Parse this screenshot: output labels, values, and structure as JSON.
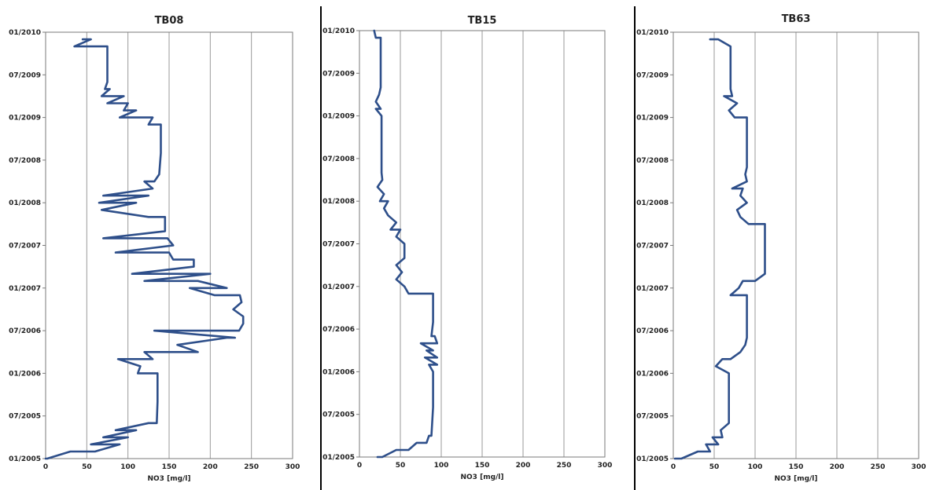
{
  "chart_data": [
    {
      "type": "line",
      "title": "TB08",
      "xlabel": "NO3 [mg/l]",
      "ylabel": "",
      "xlim": [
        0,
        300
      ],
      "x_ticks": [
        "0",
        "50",
        "100",
        "150",
        "200",
        "250",
        "300"
      ],
      "ylim": [
        "2005-01",
        "2010-01"
      ],
      "y_ticks": [
        "01/2005",
        "07/2005",
        "01/2006",
        "07/2006",
        "01/2007",
        "07/2007",
        "01/2008",
        "07/2008",
        "01/2009",
        "07/2009",
        "01/2010"
      ],
      "grid": "vertical",
      "line_color": "#2e4f8a",
      "series": [
        {
          "points": [
            {
              "date": "2005-01",
              "no3": 0
            },
            {
              "date": "2005-01",
              "no3": 2
            },
            {
              "date": "2005-02",
              "no3": 30
            },
            {
              "date": "2005-02",
              "no3": 60
            },
            {
              "date": "2005-03",
              "no3": 90
            },
            {
              "date": "2005-03",
              "no3": 55
            },
            {
              "date": "2005-04",
              "no3": 100
            },
            {
              "date": "2005-04",
              "no3": 70
            },
            {
              "date": "2005-05",
              "no3": 110
            },
            {
              "date": "2005-05",
              "no3": 85
            },
            {
              "date": "2005-06",
              "no3": 125
            },
            {
              "date": "2005-06",
              "no3": 135
            },
            {
              "date": "2005-09",
              "no3": 136
            },
            {
              "date": "2006-01",
              "no3": 136
            },
            {
              "date": "2006-01",
              "no3": 112
            },
            {
              "date": "2006-02",
              "no3": 115
            },
            {
              "date": "2006-03",
              "no3": 88
            },
            {
              "date": "2006-03",
              "no3": 130
            },
            {
              "date": "2006-04",
              "no3": 120
            },
            {
              "date": "2006-04",
              "no3": 185
            },
            {
              "date": "2006-05",
              "no3": 160
            },
            {
              "date": "2006-06",
              "no3": 220
            },
            {
              "date": "2006-06",
              "no3": 230
            },
            {
              "date": "2006-07",
              "no3": 132
            },
            {
              "date": "2006-07",
              "no3": 235
            },
            {
              "date": "2006-08",
              "no3": 240
            },
            {
              "date": "2006-09",
              "no3": 240
            },
            {
              "date": "2006-10",
              "no3": 228
            },
            {
              "date": "2006-11",
              "no3": 238
            },
            {
              "date": "2006-12",
              "no3": 236
            },
            {
              "date": "2006-12",
              "no3": 205
            },
            {
              "date": "2007-01",
              "no3": 175
            },
            {
              "date": "2007-01",
              "no3": 220
            },
            {
              "date": "2007-02",
              "no3": 185
            },
            {
              "date": "2007-02",
              "no3": 120
            },
            {
              "date": "2007-03",
              "no3": 200
            },
            {
              "date": "2007-03",
              "no3": 105
            },
            {
              "date": "2007-04",
              "no3": 180
            },
            {
              "date": "2007-05",
              "no3": 180
            },
            {
              "date": "2007-05",
              "no3": 155
            },
            {
              "date": "2007-06",
              "no3": 150
            },
            {
              "date": "2007-06",
              "no3": 85
            },
            {
              "date": "2007-07",
              "no3": 155
            },
            {
              "date": "2007-08",
              "no3": 148
            },
            {
              "date": "2007-08",
              "no3": 70
            },
            {
              "date": "2007-09",
              "no3": 145
            },
            {
              "date": "2007-11",
              "no3": 145
            },
            {
              "date": "2007-11",
              "no3": 125
            },
            {
              "date": "2007-12",
              "no3": 68
            },
            {
              "date": "2008-01",
              "no3": 110
            },
            {
              "date": "2008-01",
              "no3": 65
            },
            {
              "date": "2008-02",
              "no3": 125
            },
            {
              "date": "2008-02",
              "no3": 70
            },
            {
              "date": "2008-03",
              "no3": 130
            },
            {
              "date": "2008-04",
              "no3": 120
            },
            {
              "date": "2008-04",
              "no3": 132
            },
            {
              "date": "2008-05",
              "no3": 138
            },
            {
              "date": "2008-08",
              "no3": 140
            },
            {
              "date": "2008-12",
              "no3": 140
            },
            {
              "date": "2008-12",
              "no3": 125
            },
            {
              "date": "2009-01",
              "no3": 130
            },
            {
              "date": "2009-01",
              "no3": 90
            },
            {
              "date": "2009-02",
              "no3": 110
            },
            {
              "date": "2009-02",
              "no3": 95
            },
            {
              "date": "2009-03",
              "no3": 100
            },
            {
              "date": "2009-03",
              "no3": 75
            },
            {
              "date": "2009-04",
              "no3": 95
            },
            {
              "date": "2009-04",
              "no3": 68
            },
            {
              "date": "2009-05",
              "no3": 78
            },
            {
              "date": "2009-05",
              "no3": 72
            },
            {
              "date": "2009-06",
              "no3": 75
            },
            {
              "date": "2009-10",
              "no3": 75
            },
            {
              "date": "2009-11",
              "no3": 75
            },
            {
              "date": "2009-11",
              "no3": 35
            },
            {
              "date": "2009-12",
              "no3": 55
            },
            {
              "date": "2009-12",
              "no3": 45
            }
          ]
        }
      ]
    },
    {
      "type": "line",
      "title": "TB15",
      "xlabel": "NO3 [mg/l]",
      "ylabel": "",
      "xlim": [
        0,
        300
      ],
      "x_ticks": [
        "0",
        "50",
        "100",
        "150",
        "200",
        "250",
        "300"
      ],
      "ylim": [
        "2005-01",
        "2010-01"
      ],
      "y_ticks": [
        "01/2005",
        "07/2005",
        "01/2006",
        "07/2006",
        "01/2007",
        "07/2007",
        "01/2008",
        "07/2008",
        "01/2009",
        "07/2009",
        "01/2010"
      ],
      "grid": "vertical",
      "line_color": "#2e4f8a",
      "series": [
        {
          "points": [
            {
              "date": "2005-01",
              "no3": 22
            },
            {
              "date": "2005-01",
              "no3": 28
            },
            {
              "date": "2005-02",
              "no3": 45
            },
            {
              "date": "2005-02",
              "no3": 60
            },
            {
              "date": "2005-03",
              "no3": 70
            },
            {
              "date": "2005-03",
              "no3": 82
            },
            {
              "date": "2005-04",
              "no3": 85
            },
            {
              "date": "2005-04",
              "no3": 88
            },
            {
              "date": "2005-08",
              "no3": 90
            },
            {
              "date": "2006-01",
              "no3": 90
            },
            {
              "date": "2006-02",
              "no3": 85
            },
            {
              "date": "2006-02",
              "no3": 95
            },
            {
              "date": "2006-03",
              "no3": 80
            },
            {
              "date": "2006-03",
              "no3": 95
            },
            {
              "date": "2006-04",
              "no3": 82
            },
            {
              "date": "2006-04",
              "no3": 90
            },
            {
              "date": "2006-05",
              "no3": 75
            },
            {
              "date": "2006-05",
              "no3": 95
            },
            {
              "date": "2006-06",
              "no3": 92
            },
            {
              "date": "2006-06",
              "no3": 88
            },
            {
              "date": "2006-08",
              "no3": 90
            },
            {
              "date": "2006-12",
              "no3": 90
            },
            {
              "date": "2006-12",
              "no3": 60
            },
            {
              "date": "2007-01",
              "no3": 55
            },
            {
              "date": "2007-02",
              "no3": 45
            },
            {
              "date": "2007-03",
              "no3": 52
            },
            {
              "date": "2007-04",
              "no3": 45
            },
            {
              "date": "2007-05",
              "no3": 55
            },
            {
              "date": "2007-07",
              "no3": 55
            },
            {
              "date": "2007-08",
              "no3": 45
            },
            {
              "date": "2007-09",
              "no3": 50
            },
            {
              "date": "2007-09",
              "no3": 38
            },
            {
              "date": "2007-10",
              "no3": 45
            },
            {
              "date": "2007-11",
              "no3": 35
            },
            {
              "date": "2007-12",
              "no3": 30
            },
            {
              "date": "2008-01",
              "no3": 35
            },
            {
              "date": "2008-01",
              "no3": 25
            },
            {
              "date": "2008-02",
              "no3": 30
            },
            {
              "date": "2008-03",
              "no3": 22
            },
            {
              "date": "2008-04",
              "no3": 28
            },
            {
              "date": "2008-05",
              "no3": 27
            },
            {
              "date": "2009-01",
              "no3": 27
            },
            {
              "date": "2009-02",
              "no3": 20
            },
            {
              "date": "2009-02",
              "no3": 26
            },
            {
              "date": "2009-03",
              "no3": 20
            },
            {
              "date": "2009-04",
              "no3": 24
            },
            {
              "date": "2009-05",
              "no3": 26
            },
            {
              "date": "2009-08",
              "no3": 26
            },
            {
              "date": "2009-12",
              "no3": 26
            },
            {
              "date": "2009-12",
              "no3": 20
            },
            {
              "date": "2010-01",
              "no3": 18
            }
          ]
        }
      ]
    },
    {
      "type": "line",
      "title": "TB63",
      "xlabel": "NO3 [mg/l]",
      "ylabel": "",
      "xlim": [
        0,
        300
      ],
      "x_ticks": [
        "0",
        "50",
        "100",
        "150",
        "200",
        "250",
        "300"
      ],
      "ylim": [
        "2005-01",
        "2010-01"
      ],
      "y_ticks": [
        "01/2005",
        "07/2005",
        "01/2006",
        "07/2006",
        "01/2007",
        "07/2007",
        "01/2008",
        "07/2008",
        "01/2009",
        "07/2009",
        "01/2010"
      ],
      "grid": "vertical",
      "line_color": "#2e4f8a",
      "series": [
        {
          "points": [
            {
              "date": "2005-01",
              "no3": 2
            },
            {
              "date": "2005-01",
              "no3": 10
            },
            {
              "date": "2005-02",
              "no3": 30
            },
            {
              "date": "2005-02",
              "no3": 45
            },
            {
              "date": "2005-03",
              "no3": 40
            },
            {
              "date": "2005-03",
              "no3": 55
            },
            {
              "date": "2005-04",
              "no3": 48
            },
            {
              "date": "2005-04",
              "no3": 60
            },
            {
              "date": "2005-05",
              "no3": 58
            },
            {
              "date": "2005-06",
              "no3": 68
            },
            {
              "date": "2006-01",
              "no3": 68
            },
            {
              "date": "2006-02",
              "no3": 52
            },
            {
              "date": "2006-03",
              "no3": 60
            },
            {
              "date": "2006-03",
              "no3": 70
            },
            {
              "date": "2006-04",
              "no3": 82
            },
            {
              "date": "2006-05",
              "no3": 88
            },
            {
              "date": "2006-06",
              "no3": 90
            },
            {
              "date": "2006-12",
              "no3": 90
            },
            {
              "date": "2006-12",
              "no3": 70
            },
            {
              "date": "2007-01",
              "no3": 80
            },
            {
              "date": "2007-02",
              "no3": 85
            },
            {
              "date": "2007-02",
              "no3": 100
            },
            {
              "date": "2007-03",
              "no3": 112
            },
            {
              "date": "2007-08",
              "no3": 112
            },
            {
              "date": "2007-09",
              "no3": 112
            },
            {
              "date": "2007-10",
              "no3": 112
            },
            {
              "date": "2007-10",
              "no3": 92
            },
            {
              "date": "2007-11",
              "no3": 82
            },
            {
              "date": "2007-12",
              "no3": 78
            },
            {
              "date": "2008-01",
              "no3": 90
            },
            {
              "date": "2008-02",
              "no3": 82
            },
            {
              "date": "2008-03",
              "no3": 85
            },
            {
              "date": "2008-03",
              "no3": 72
            },
            {
              "date": "2008-04",
              "no3": 90
            },
            {
              "date": "2008-05",
              "no3": 88
            },
            {
              "date": "2008-06",
              "no3": 90
            },
            {
              "date": "2009-01",
              "no3": 90
            },
            {
              "date": "2009-01",
              "no3": 75
            },
            {
              "date": "2009-02",
              "no3": 68
            },
            {
              "date": "2009-03",
              "no3": 78
            },
            {
              "date": "2009-04",
              "no3": 62
            },
            {
              "date": "2009-04",
              "no3": 72
            },
            {
              "date": "2009-05",
              "no3": 70
            },
            {
              "date": "2009-10",
              "no3": 70
            },
            {
              "date": "2009-11",
              "no3": 70
            },
            {
              "date": "2009-12",
              "no3": 55
            },
            {
              "date": "2009-12",
              "no3": 45
            }
          ]
        }
      ]
    }
  ]
}
